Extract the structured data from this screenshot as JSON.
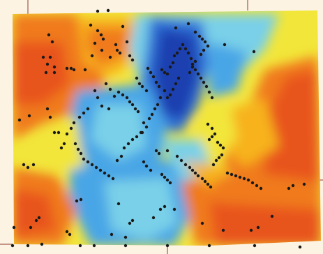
{
  "map": {
    "type": "interpolated-surface-with-sample-points",
    "color_ramp": [
      "#1f3fb0",
      "#2f6fd6",
      "#49a6e6",
      "#79d0e8",
      "#f2e63a",
      "#f7b21f",
      "#f07a1e",
      "#e8551f"
    ],
    "frame_color": "#fcf3e2",
    "border_line_color": "#8b3a2e",
    "point_color": "#1a1a1a"
  }
}
